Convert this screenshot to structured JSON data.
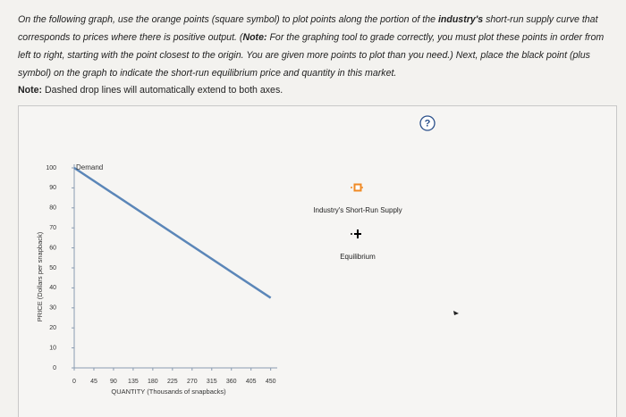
{
  "instructions": {
    "segments": [
      {
        "text": "On the following graph, use the orange points (square symbol) to plot points along the portion of the ",
        "bold": false
      },
      {
        "text": "industry's",
        "bold": true
      },
      {
        "text": " short-run supply curve that corresponds to prices where there is positive output. (",
        "bold": false
      },
      {
        "text": "Note:",
        "bold": true
      },
      {
        "text": " For the graphing tool to grade correctly, you must plot these points in order from left to right, starting with the point closest to the origin. You are given more points to plot than you need.) Next, place the black point (plus symbol) on the graph to indicate the short-run equilibrium price and quantity in this market.",
        "bold": false
      }
    ]
  },
  "note": {
    "label": "Note:",
    "text": " Dashed drop lines will automatically extend to both axes."
  },
  "help": "?",
  "chart_data": {
    "type": "line",
    "x_label": "QUANTITY (Thousands of snapbacks)",
    "y_label": "PRICE (Dollars per snapback)",
    "x": [
      0,
      450
    ],
    "series": [
      {
        "name": "Demand",
        "color": "#5b86b8",
        "values": [
          100,
          35
        ]
      }
    ],
    "xlim": [
      0,
      465
    ],
    "ylim": [
      0,
      100
    ],
    "xticks": [
      0,
      45,
      90,
      135,
      180,
      225,
      270,
      315,
      360,
      405,
      450
    ],
    "yticks": [
      0,
      10,
      20,
      30,
      40,
      50,
      60,
      70,
      80,
      90,
      100
    ],
    "grid": false,
    "palette": [
      {
        "name": "Industry's Short-Run Supply",
        "color": "#f08a24",
        "symbol": "square"
      },
      {
        "name": "Equilibrium",
        "color": "#000000",
        "symbol": "plus"
      }
    ]
  }
}
